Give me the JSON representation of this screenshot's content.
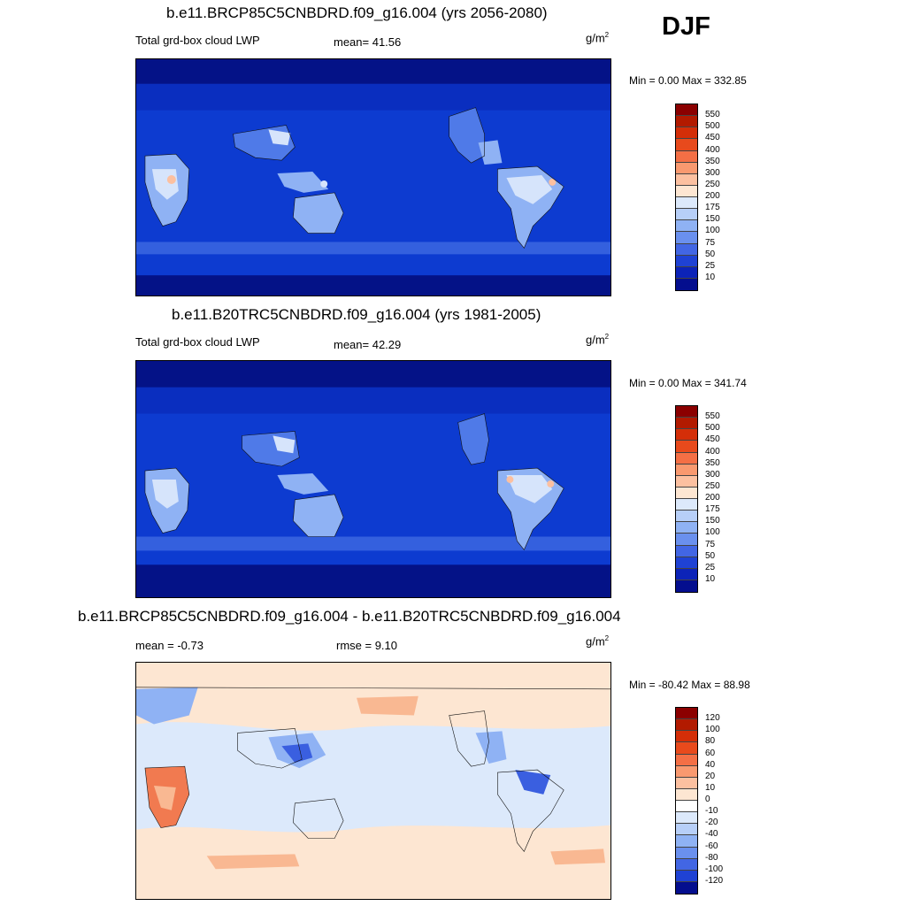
{
  "season": "DJF",
  "panels": [
    {
      "title": "b.e11.BRCP85C5CNBDRD.f09_g16.004 (yrs 2056-2080)",
      "left_label": "Total grd-box cloud LWP",
      "center_label": "mean=  41.56",
      "units_base": "g/m",
      "units_exp": "2",
      "minmax": "Min =   0.00 Max = 332.85",
      "colorbar": {
        "labels": [
          "550",
          "500",
          "450",
          "400",
          "350",
          "300",
          "250",
          "200",
          "175",
          "150",
          "100",
          "75",
          "50",
          "25",
          "10"
        ],
        "colors": [
          "#8b0000",
          "#b21a00",
          "#d42e08",
          "#e84a1c",
          "#f46f45",
          "#f9996f",
          "#fcc0a0",
          "#fde6d2",
          "#dce9fb",
          "#b7cff8",
          "#8fb2f4",
          "#6a90ee",
          "#4266e4",
          "#1f42d4",
          "#0c23b8",
          "#040e8e"
        ]
      }
    },
    {
      "title": "b.e11.B20TRC5CNBDRD.f09_g16.004 (yrs 1981-2005)",
      "left_label": "Total grd-box cloud LWP",
      "center_label": "mean=  42.29",
      "units_base": "g/m",
      "units_exp": "2",
      "minmax": "Min =   0.00 Max = 341.74",
      "colorbar": {
        "labels": [
          "550",
          "500",
          "450",
          "400",
          "350",
          "300",
          "250",
          "200",
          "175",
          "150",
          "100",
          "75",
          "50",
          "25",
          "10"
        ],
        "colors": [
          "#8b0000",
          "#b21a00",
          "#d42e08",
          "#e84a1c",
          "#f46f45",
          "#f9996f",
          "#fcc0a0",
          "#fde6d2",
          "#dce9fb",
          "#b7cff8",
          "#8fb2f4",
          "#6a90ee",
          "#4266e4",
          "#1f42d4",
          "#0c23b8",
          "#040e8e"
        ]
      }
    },
    {
      "title": "b.e11.BRCP85C5CNBDRD.f09_g16.004 - b.e11.B20TRC5CNBDRD.f09_g16.004",
      "left_label": "mean =  -0.73",
      "center_label": "rmse =   9.10",
      "units_base": "g/m",
      "units_exp": "2",
      "minmax": "Min = -80.42 Max =  88.98",
      "colorbar": {
        "labels": [
          "120",
          "100",
          "80",
          "60",
          "40",
          "20",
          "10",
          "0",
          "-10",
          "-20",
          "-40",
          "-60",
          "-80",
          "-100",
          "-120"
        ],
        "colors": [
          "#8b0000",
          "#b21a00",
          "#d42e08",
          "#e84a1c",
          "#f46f45",
          "#f9996f",
          "#fcc0a0",
          "#fde6d2",
          "#ffffff",
          "#dce9fb",
          "#b7cff8",
          "#8fb2f4",
          "#6a90ee",
          "#4266e4",
          "#1f42d4",
          "#040e8e"
        ]
      }
    }
  ],
  "colors": {
    "abs_ocean": "#0d3bd0",
    "abs_polar": "#041287",
    "abs_highlat": "#0a24b0",
    "abs_land_low": "#4f7ae8",
    "abs_land_mid": "#8fb2f4",
    "abs_land_high": "#d6e4fb",
    "abs_land_peak": "#fcc0a0",
    "abs_land_max": "#f46f45",
    "diff_bg": "#fde6d2",
    "diff_neg1": "#dce9fb",
    "diff_neg2": "#8fb2f4",
    "diff_neg3": "#3a5fe0",
    "diff_pos1": "#f9b892",
    "diff_pos2": "#f17a50"
  }
}
